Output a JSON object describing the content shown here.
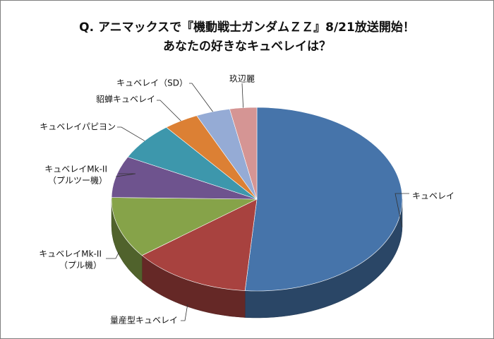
{
  "chart_data": {
    "type": "pie",
    "title": [
      "Q.  アニマックスで『機動戦士ガンダムＺＺ』8/21放送開始！",
      "あなたの好きなキュベレイは？"
    ],
    "slices": [
      {
        "label": [
          "キュベレイ"
        ],
        "value": 51.3,
        "color": "#4674aa"
      },
      {
        "label": [
          "量産型キュベレイ"
        ],
        "value": 13.2,
        "color": "#a8423f"
      },
      {
        "label": [
          "キュベレイMk-II",
          "（プル機）"
        ],
        "value": 10.8,
        "color": "#86a349"
      },
      {
        "label": [
          "キュベレイMk-II",
          "（プルツー機）"
        ],
        "value": 7.3,
        "color": "#6e538e"
      },
      {
        "label": [
          "キュベレイパピヨン"
        ],
        "value": 6.7,
        "color": "#3d97ac"
      },
      {
        "label": [
          "貂蝉キュベレイ"
        ],
        "value": 3.9,
        "color": "#dc8034"
      },
      {
        "label": [
          "キュベレイ（SD）"
        ],
        "value": 3.8,
        "color": "#95abd5"
      },
      {
        "label": [
          "玖辺麗"
        ],
        "value": 3.0,
        "color": "#d59594"
      }
    ],
    "legend": "none"
  }
}
